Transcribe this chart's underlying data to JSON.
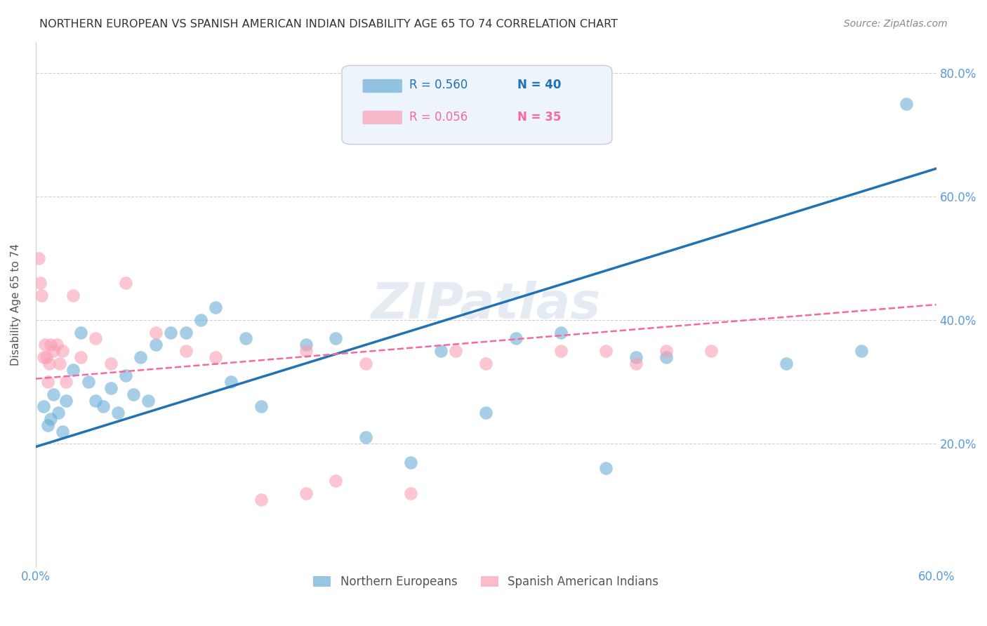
{
  "title": "NORTHERN EUROPEAN VS SPANISH AMERICAN INDIAN DISABILITY AGE 65 TO 74 CORRELATION CHART",
  "source": "Source: ZipAtlas.com",
  "ylabel": "Disability Age 65 to 74",
  "xlim": [
    0.0,
    0.6
  ],
  "ylim": [
    0.0,
    0.85
  ],
  "yticks": [
    0.2,
    0.4,
    0.6,
    0.8
  ],
  "ytick_labels": [
    "20.0%",
    "40.0%",
    "60.0%",
    "80.0%"
  ],
  "xtick_positions": [
    0.0,
    0.1,
    0.2,
    0.3,
    0.4,
    0.5,
    0.6
  ],
  "xtick_labels": [
    "0.0%",
    "",
    "",
    "",
    "",
    "",
    "60.0%"
  ],
  "blue_R": 0.56,
  "blue_N": 40,
  "pink_R": 0.056,
  "pink_N": 35,
  "blue_color": "#6baed6",
  "pink_color": "#fa9fb5",
  "blue_line_color": "#2171b5",
  "pink_line_color": "#f768a1",
  "watermark": "ZIPatlas",
  "background_color": "#ffffff",
  "grid_color": "#d0d0d0",
  "blue_scatter_x": [
    0.02,
    0.015,
    0.01,
    0.018,
    0.005,
    0.008,
    0.012,
    0.025,
    0.03,
    0.035,
    0.04,
    0.045,
    0.05,
    0.055,
    0.06,
    0.065,
    0.07,
    0.075,
    0.08,
    0.09,
    0.1,
    0.11,
    0.12,
    0.13,
    0.14,
    0.15,
    0.18,
    0.2,
    0.22,
    0.25,
    0.27,
    0.3,
    0.32,
    0.35,
    0.38,
    0.4,
    0.42,
    0.5,
    0.55,
    0.58
  ],
  "blue_scatter_y": [
    0.27,
    0.25,
    0.24,
    0.22,
    0.26,
    0.23,
    0.28,
    0.32,
    0.38,
    0.3,
    0.27,
    0.26,
    0.29,
    0.25,
    0.31,
    0.28,
    0.34,
    0.27,
    0.36,
    0.38,
    0.38,
    0.4,
    0.42,
    0.3,
    0.37,
    0.26,
    0.36,
    0.37,
    0.21,
    0.17,
    0.35,
    0.25,
    0.37,
    0.38,
    0.16,
    0.34,
    0.34,
    0.33,
    0.35,
    0.75
  ],
  "pink_scatter_x": [
    0.002,
    0.003,
    0.004,
    0.005,
    0.006,
    0.007,
    0.008,
    0.009,
    0.01,
    0.012,
    0.014,
    0.016,
    0.018,
    0.02,
    0.025,
    0.03,
    0.04,
    0.05,
    0.06,
    0.08,
    0.12,
    0.15,
    0.18,
    0.2,
    0.25,
    0.28,
    0.3,
    0.35,
    0.38,
    0.4,
    0.42,
    0.45,
    0.18,
    0.22,
    0.1
  ],
  "pink_scatter_y": [
    0.5,
    0.46,
    0.44,
    0.34,
    0.36,
    0.34,
    0.3,
    0.33,
    0.36,
    0.35,
    0.36,
    0.33,
    0.35,
    0.3,
    0.44,
    0.34,
    0.37,
    0.33,
    0.46,
    0.38,
    0.34,
    0.11,
    0.12,
    0.14,
    0.12,
    0.35,
    0.33,
    0.35,
    0.35,
    0.33,
    0.35,
    0.35,
    0.35,
    0.33,
    0.35
  ],
  "blue_line_x0": 0.0,
  "blue_line_y0": 0.195,
  "blue_line_x1": 0.6,
  "blue_line_y1": 0.645,
  "pink_line_x0": 0.0,
  "pink_line_y0": 0.305,
  "pink_line_x1": 0.6,
  "pink_line_y1": 0.425,
  "legend_bottom_labels": [
    "Northern Europeans",
    "Spanish American Indians"
  ],
  "tick_color": "#5b9bd5",
  "title_color": "#333333",
  "source_color": "#888888",
  "ylabel_color": "#555555"
}
